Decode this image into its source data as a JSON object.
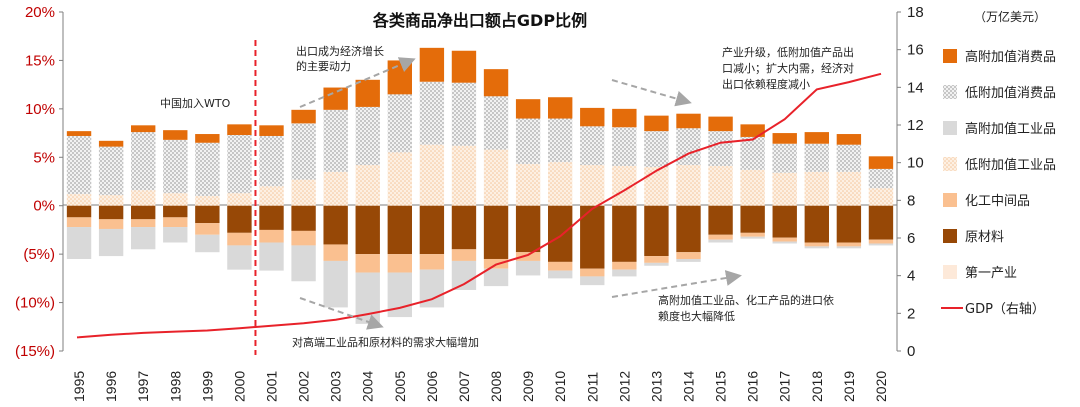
{
  "chart_data": {
    "type": "bar",
    "title": "各类商品净出口额占GDP比例",
    "right_axis_unit": "（万亿美元）",
    "categories": [
      "1995",
      "1996",
      "1997",
      "1998",
      "1999",
      "2000",
      "2001",
      "2002",
      "2003",
      "2004",
      "2005",
      "2006",
      "2007",
      "2008",
      "2009",
      "2010",
      "2011",
      "2012",
      "2013",
      "2014",
      "2015",
      "2016",
      "2017",
      "2018",
      "2019",
      "2020"
    ],
    "left_axis": {
      "ylim": [
        -15,
        20
      ],
      "ticks": [
        20,
        15,
        10,
        5,
        0,
        -5,
        -10,
        -15
      ],
      "tick_labels": [
        "20%",
        "15%",
        "10%",
        "5%",
        "0%",
        "(5%)",
        "(10%)",
        "(15%)"
      ]
    },
    "right_axis": {
      "ylim": [
        0,
        18
      ],
      "ticks": [
        0,
        2,
        4,
        6,
        8,
        10,
        12,
        14,
        16,
        18
      ],
      "tick_labels": [
        "0",
        "2",
        "4",
        "6",
        "8",
        "10",
        "12",
        "14",
        "16",
        "18"
      ]
    },
    "series": [
      {
        "name": "高附加值消费品",
        "color": "#e46c0a",
        "pattern": "solid",
        "values": [
          0.5,
          0.6,
          0.7,
          1.0,
          0.9,
          1.1,
          1.1,
          1.4,
          2.3,
          2.8,
          3.5,
          3.5,
          3.3,
          2.8,
          2.0,
          2.2,
          1.9,
          1.9,
          1.6,
          1.5,
          1.5,
          1.3,
          1.1,
          1.2,
          1.1,
          1.3
        ]
      },
      {
        "name": "低附加值消费品",
        "color": "#d9d9d9",
        "pattern": "dots",
        "values": [
          6.0,
          5.0,
          6.0,
          5.5,
          5.5,
          6.0,
          5.2,
          5.8,
          6.4,
          6.0,
          6.0,
          6.5,
          6.5,
          5.5,
          4.7,
          4.5,
          4.0,
          4.0,
          3.7,
          3.8,
          3.6,
          3.4,
          3.0,
          2.9,
          2.8,
          2.0
        ]
      },
      {
        "name": "高附加值工业品",
        "color": "#d9d9d9",
        "pattern": "solid",
        "values": [
          0,
          0,
          0,
          0,
          0,
          0,
          0,
          0,
          0,
          0,
          0,
          0,
          0,
          0,
          0,
          0,
          0,
          0,
          0,
          0,
          0,
          0,
          0,
          0,
          0,
          0
        ]
      },
      {
        "name": "低附加值工业品",
        "color": "#fbe1c8",
        "pattern": "dots",
        "values": [
          1.2,
          1.1,
          1.6,
          1.3,
          1.0,
          1.3,
          2.0,
          2.7,
          3.5,
          4.2,
          5.5,
          6.3,
          6.2,
          5.8,
          4.3,
          4.5,
          4.2,
          4.1,
          4.0,
          4.2,
          4.1,
          3.7,
          3.4,
          3.5,
          3.5,
          1.8
        ]
      },
      {
        "name": "化工中间品",
        "color": "#fac090",
        "pattern": "solid",
        "values": [
          0,
          0,
          0,
          0,
          0,
          0,
          0,
          0,
          0,
          0,
          0,
          0,
          0,
          0,
          0,
          0,
          0,
          0,
          0,
          0,
          0,
          0,
          0,
          0,
          0,
          0
        ]
      },
      {
        "name": "原材料",
        "color": "#974806",
        "pattern": "solid",
        "values": [
          -1.2,
          -1.4,
          -1.4,
          -1.2,
          -1.8,
          -2.8,
          -2.5,
          -2.6,
          -4.0,
          -5.0,
          -5.0,
          -5.0,
          -4.5,
          -5.5,
          -4.8,
          -5.8,
          -6.5,
          -5.8,
          -5.2,
          -4.8,
          -3.0,
          -2.8,
          -3.3,
          -3.8,
          -3.8,
          -3.5
        ]
      },
      {
        "name": "第一产业",
        "color": "#fde9d9",
        "pattern": "solid",
        "values": [
          0,
          0,
          0,
          0,
          0,
          0,
          0,
          0,
          0,
          0,
          0,
          0,
          0,
          0,
          0,
          0,
          0,
          0,
          0,
          0,
          0,
          0,
          0,
          0,
          0,
          0
        ]
      }
    ],
    "negative_segments": {
      "chem_intermediate": [
        -1.0,
        -1.0,
        -0.8,
        -1.0,
        -1.2,
        -1.3,
        -1.3,
        -1.5,
        -1.7,
        -1.9,
        -1.9,
        -1.6,
        -1.2,
        -1.0,
        -0.9,
        -0.9,
        -0.8,
        -0.8,
        -0.7,
        -0.7,
        -0.5,
        -0.4,
        -0.4,
        -0.4,
        -0.4,
        -0.4
      ],
      "high_value_industrial": [
        -3.3,
        -2.8,
        -2.3,
        -1.6,
        -1.8,
        -2.5,
        -2.9,
        -3.7,
        -4.8,
        -5.3,
        -4.6,
        -3.9,
        -3.0,
        -1.8,
        -1.5,
        -0.8,
        -0.9,
        -0.7,
        -0.3,
        -0.3,
        -0.3,
        -0.2,
        -0.2,
        -0.2,
        -0.2,
        -0.2
      ]
    },
    "line_series": {
      "name": "GDP（右轴）",
      "color": "#e8222a",
      "axis": "right",
      "values": [
        0.73,
        0.86,
        0.96,
        1.03,
        1.09,
        1.21,
        1.34,
        1.47,
        1.66,
        1.96,
        2.29,
        2.75,
        3.55,
        4.59,
        5.1,
        6.09,
        7.55,
        8.53,
        9.57,
        10.48,
        11.06,
        11.23,
        12.31,
        13.89,
        14.28,
        14.72
      ]
    },
    "marker_line": {
      "label": "中国加入WTO",
      "after_category": "2000",
      "color": "#e8222a"
    },
    "annotations": [
      "出口成为经济增长的主要动力",
      "产业升级，低附加值产品出口减小；扩大内需，经济对出口依赖程度减小",
      "对高端工业品和原材料的需求大幅增加",
      "高附加值工业品、化工产品的进口依赖度也大幅降低"
    ],
    "legend": [
      {
        "label": "高附加值消费品",
        "color": "#e46c0a",
        "pattern": "solid"
      },
      {
        "label": "低附加值消费品",
        "color": "#d9d9d9",
        "pattern": "dots"
      },
      {
        "label": "高附加值工业品",
        "color": "#d9d9d9",
        "pattern": "solid"
      },
      {
        "label": "低附加值工业品",
        "color": "#fbe1c8",
        "pattern": "dots"
      },
      {
        "label": "化工中间品",
        "color": "#fac090",
        "pattern": "solid"
      },
      {
        "label": "原材料",
        "color": "#974806",
        "pattern": "solid"
      },
      {
        "label": "第一产业",
        "color": "#fde9d9",
        "pattern": "solid"
      },
      {
        "label": "GDP（右轴）",
        "color": "#e8222a",
        "pattern": "line"
      }
    ],
    "colors": {
      "negative_left_ticks": "#c00000",
      "positive_left_ticks": "#c00000"
    }
  }
}
